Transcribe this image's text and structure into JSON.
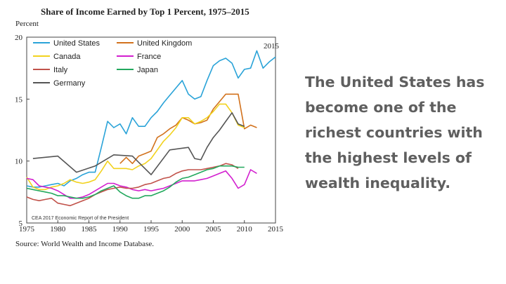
{
  "chart_data": {
    "type": "line",
    "title": "Share of Income Earned by Top 1 Percent, 1975–2015",
    "ylabel": "Percent",
    "xlim": [
      1975,
      2015
    ],
    "ylim": [
      5,
      20
    ],
    "x_ticks": [
      1975,
      1980,
      1985,
      1990,
      1995,
      2000,
      2005,
      2010,
      2015
    ],
    "y_ticks": [
      5,
      10,
      15,
      20
    ],
    "grid": false,
    "legend": "top-left, inside plot, two columns",
    "annotation": "2015",
    "credit": "CEA 2017 Economic Report of the President",
    "source": "Source: World Wealth and Income Database.",
    "colors": {
      "United States": "#2aa3d8",
      "United Kingdom": "#d2721d",
      "Canada": "#f2d21e",
      "France": "#d21fcf",
      "Italy": "#c1524a",
      "Japan": "#22a85d",
      "Germany": "#555555"
    },
    "series": [
      {
        "name": "United States",
        "x": [
          1975,
          1976,
          1977,
          1978,
          1979,
          1980,
          1981,
          1982,
          1983,
          1984,
          1985,
          1986,
          1987,
          1988,
          1989,
          1990,
          1991,
          1992,
          1993,
          1994,
          1995,
          1996,
          1997,
          1998,
          1999,
          2000,
          2001,
          2002,
          2003,
          2004,
          2005,
          2006,
          2007,
          2008,
          2009,
          2010,
          2011,
          2012,
          2013,
          2014,
          2015
        ],
        "y": [
          8.0,
          7.9,
          7.9,
          8.0,
          8.1,
          8.2,
          8.0,
          8.4,
          8.6,
          8.9,
          9.1,
          9.1,
          11.1,
          13.2,
          12.7,
          13.0,
          12.2,
          13.5,
          12.8,
          12.8,
          13.5,
          14.0,
          14.7,
          15.3,
          15.9,
          16.5,
          15.4,
          15.0,
          15.2,
          16.5,
          17.7,
          18.1,
          18.3,
          17.9,
          16.7,
          17.4,
          17.5,
          18.9,
          17.5,
          18.0,
          18.4
        ]
      },
      {
        "name": "United Kingdom",
        "x": [
          1990,
          1991,
          1992,
          1993,
          1994,
          1995,
          1996,
          1997,
          1998,
          1999,
          2000,
          2001,
          2002,
          2003,
          2004,
          2005,
          2006,
          2007,
          2008,
          2009,
          2010,
          2011,
          2012
        ],
        "y": [
          9.8,
          10.3,
          9.8,
          10.4,
          10.6,
          10.8,
          11.9,
          12.2,
          12.6,
          12.9,
          13.5,
          13.3,
          13.0,
          13.1,
          13.3,
          14.2,
          14.8,
          15.4,
          15.4,
          15.4,
          12.6,
          12.9,
          12.7
        ]
      },
      {
        "name": "Canada",
        "x": [
          1975,
          1976,
          1977,
          1978,
          1979,
          1980,
          1981,
          1982,
          1983,
          1984,
          1985,
          1986,
          1987,
          1988,
          1989,
          1990,
          1991,
          1992,
          1993,
          1994,
          1995,
          1996,
          1997,
          1998,
          1999,
          2000,
          2001,
          2002,
          2003,
          2004,
          2005,
          2006,
          2007,
          2008,
          2009,
          2010
        ],
        "y": [
          8.7,
          7.9,
          7.7,
          7.7,
          7.9,
          8.0,
          8.2,
          8.5,
          8.3,
          8.2,
          8.3,
          8.5,
          9.2,
          10.0,
          9.4,
          9.4,
          9.4,
          9.3,
          9.6,
          9.8,
          10.2,
          10.9,
          11.6,
          12.1,
          12.7,
          13.5,
          13.5,
          13.0,
          13.2,
          13.5,
          14.0,
          14.6,
          14.6,
          13.9,
          12.9,
          12.7
        ]
      },
      {
        "name": "France",
        "x": [
          1975,
          1976,
          1977,
          1978,
          1979,
          1980,
          1981,
          1982,
          1983,
          1984,
          1985,
          1986,
          1987,
          1988,
          1989,
          1990,
          1991,
          1992,
          1993,
          1994,
          1995,
          1996,
          1997,
          1998,
          1999,
          2000,
          2001,
          2002,
          2003,
          2004,
          2005,
          2006,
          2007,
          2008,
          2009,
          2010,
          2011,
          2012
        ],
        "y": [
          8.6,
          8.5,
          8.0,
          7.9,
          7.8,
          7.6,
          7.3,
          7.0,
          7.0,
          7.1,
          7.3,
          7.6,
          7.9,
          8.2,
          8.2,
          8.0,
          7.9,
          7.7,
          7.6,
          7.7,
          7.6,
          7.7,
          7.8,
          8.0,
          8.2,
          8.4,
          8.4,
          8.4,
          8.5,
          8.6,
          8.8,
          9.0,
          9.2,
          8.6,
          7.8,
          8.1,
          9.3,
          9.0
        ]
      },
      {
        "name": "Italy",
        "x": [
          1975,
          1976,
          1977,
          1978,
          1979,
          1980,
          1981,
          1982,
          1983,
          1984,
          1985,
          1986,
          1987,
          1988,
          1989,
          1990,
          1991,
          1992,
          1993,
          1994,
          1995,
          1996,
          1997,
          1998,
          1999,
          2000,
          2001,
          2002,
          2003,
          2004,
          2005,
          2006,
          2007,
          2008,
          2009
        ],
        "y": [
          7.1,
          6.9,
          6.8,
          6.9,
          7.0,
          6.6,
          6.5,
          6.4,
          6.6,
          6.8,
          7.0,
          7.3,
          7.5,
          7.7,
          7.8,
          7.9,
          7.8,
          7.8,
          7.9,
          8.1,
          8.2,
          8.4,
          8.6,
          8.7,
          9.0,
          9.2,
          9.3,
          9.3,
          9.3,
          9.4,
          9.5,
          9.6,
          9.8,
          9.7,
          9.4
        ]
      },
      {
        "name": "Japan",
        "x": [
          1975,
          1976,
          1977,
          1978,
          1979,
          1980,
          1981,
          1982,
          1983,
          1984,
          1985,
          1986,
          1987,
          1988,
          1989,
          1990,
          1991,
          1992,
          1993,
          1994,
          1995,
          1996,
          1997,
          1998,
          1999,
          2000,
          2001,
          2002,
          2003,
          2004,
          2005,
          2006,
          2007,
          2008,
          2009,
          2010
        ],
        "y": [
          7.8,
          7.7,
          7.6,
          7.5,
          7.4,
          7.2,
          7.2,
          7.1,
          7.0,
          7.0,
          7.1,
          7.3,
          7.6,
          7.8,
          8.0,
          7.5,
          7.2,
          7.0,
          7.0,
          7.2,
          7.2,
          7.4,
          7.6,
          7.9,
          8.3,
          8.6,
          8.7,
          8.9,
          9.1,
          9.3,
          9.4,
          9.6,
          9.6,
          9.6,
          9.5,
          9.5
        ]
      },
      {
        "name": "Germany",
        "x": [
          1976,
          1980,
          1983,
          1986,
          1989,
          1992,
          1995,
          1998,
          2001,
          2002,
          2003,
          2004,
          2005,
          2006,
          2007,
          2008,
          2009,
          2010
        ],
        "y": [
          10.2,
          10.4,
          9.1,
          9.6,
          10.5,
          10.4,
          8.9,
          10.9,
          11.1,
          10.2,
          10.1,
          11.1,
          11.9,
          12.5,
          13.2,
          13.9,
          13.0,
          12.8
        ]
      }
    ]
  },
  "side_text": "The United States has become one of the richest countries with the highest levels of wealth inequality."
}
